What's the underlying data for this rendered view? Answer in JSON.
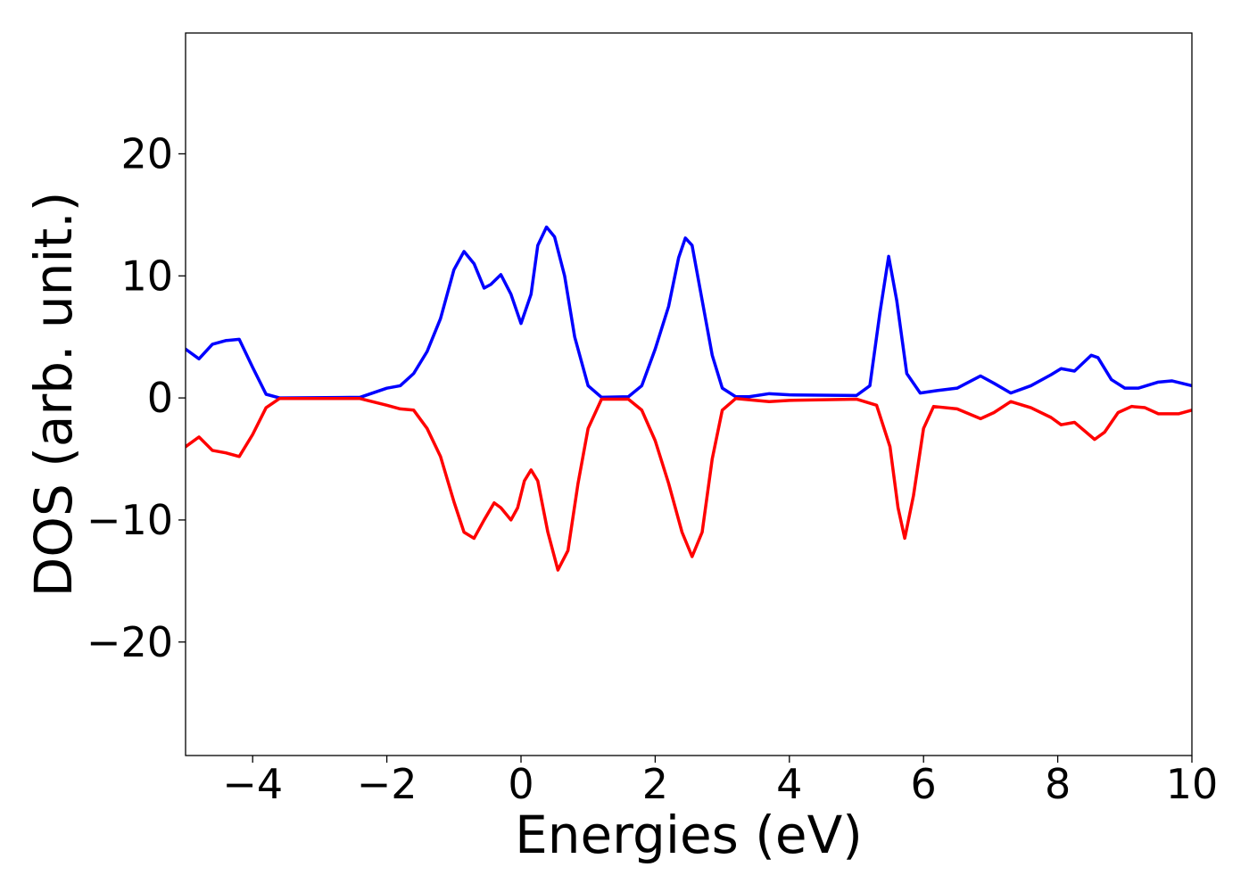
{
  "chart_data": {
    "type": "line",
    "xlabel": "Energies (eV)",
    "ylabel": "DOS (arb. unit.)",
    "xlim": [
      -5,
      10
    ],
    "ylim": [
      -29.3,
      29.9
    ],
    "xticks": [
      {
        "value": -4,
        "label": "−4"
      },
      {
        "value": -2,
        "label": "−2"
      },
      0,
      2,
      4,
      6,
      8,
      10
    ],
    "yticks": [
      {
        "value": -20,
        "label": "−20"
      },
      {
        "value": -10,
        "label": "−10"
      },
      0,
      10,
      20
    ],
    "grid": false,
    "series": [
      {
        "color": "#0000ff",
        "x": [
          -5,
          -4.8,
          -4.6,
          -4.4,
          -4.2,
          -4.0,
          -3.8,
          -3.6,
          -2.4,
          -2.0,
          -1.8,
          -1.6,
          -1.4,
          -1.2,
          -1.0,
          -0.85,
          -0.7,
          -0.55,
          -0.45,
          -0.3,
          -0.15,
          0.0,
          0.15,
          0.25,
          0.38,
          0.5,
          0.65,
          0.8,
          1.0,
          1.2,
          1.6,
          1.8,
          2.0,
          2.2,
          2.35,
          2.45,
          2.55,
          2.7,
          2.85,
          3.0,
          3.2,
          3.4,
          3.7,
          4.0,
          5.0,
          5.2,
          5.35,
          5.48,
          5.6,
          5.75,
          5.95,
          6.2,
          6.5,
          6.85,
          7.05,
          7.3,
          7.6,
          7.9,
          8.05,
          8.25,
          8.5,
          8.6,
          8.8,
          9.0,
          9.2,
          9.5,
          9.7,
          10
        ],
        "values": [
          4.0,
          3.2,
          4.4,
          4.7,
          4.8,
          2.5,
          0.3,
          0.0,
          0.05,
          0.8,
          1.0,
          2.0,
          3.8,
          6.5,
          10.5,
          12.0,
          11.0,
          9.0,
          9.3,
          10.1,
          8.5,
          6.1,
          8.5,
          12.5,
          14.0,
          13.2,
          10.0,
          5.0,
          1.0,
          0.05,
          0.1,
          1.0,
          4.0,
          7.5,
          11.5,
          13.1,
          12.5,
          8.0,
          3.5,
          0.8,
          0.1,
          0.1,
          0.35,
          0.25,
          0.2,
          1.0,
          7.0,
          11.6,
          8.0,
          2.0,
          0.4,
          0.6,
          0.8,
          1.8,
          1.2,
          0.4,
          1.0,
          1.9,
          2.4,
          2.2,
          3.5,
          3.3,
          1.5,
          0.8,
          0.8,
          1.3,
          1.4,
          1.0
        ]
      },
      {
        "color": "#ff0000",
        "x": [
          -5,
          -4.8,
          -4.6,
          -4.4,
          -4.2,
          -4.0,
          -3.8,
          -3.6,
          -2.4,
          -2.0,
          -1.8,
          -1.6,
          -1.4,
          -1.2,
          -1.0,
          -0.85,
          -0.7,
          -0.55,
          -0.4,
          -0.3,
          -0.15,
          -0.05,
          0.05,
          0.15,
          0.25,
          0.4,
          0.55,
          0.7,
          0.85,
          1.0,
          1.2,
          1.6,
          1.8,
          2.0,
          2.2,
          2.4,
          2.55,
          2.7,
          2.85,
          3.0,
          3.2,
          3.5,
          3.7,
          4.0,
          5.0,
          5.3,
          5.5,
          5.62,
          5.72,
          5.85,
          6.0,
          6.15,
          6.5,
          6.85,
          7.05,
          7.3,
          7.6,
          7.9,
          8.05,
          8.25,
          8.55,
          8.7,
          8.9,
          9.1,
          9.3,
          9.5,
          9.8,
          10
        ],
        "values": [
          -4.0,
          -3.2,
          -4.3,
          -4.5,
          -4.8,
          -3.0,
          -0.8,
          -0.05,
          -0.05,
          -0.6,
          -0.9,
          -1.0,
          -2.5,
          -4.8,
          -8.5,
          -11.0,
          -11.5,
          -10.0,
          -8.6,
          -9.0,
          -10.0,
          -9.0,
          -6.8,
          -5.9,
          -6.8,
          -11.0,
          -14.1,
          -12.5,
          -7.0,
          -2.5,
          -0.1,
          -0.1,
          -1.0,
          -3.5,
          -7.0,
          -11.0,
          -13.0,
          -11.0,
          -5.0,
          -1.0,
          -0.05,
          -0.2,
          -0.3,
          -0.2,
          -0.1,
          -0.6,
          -4.0,
          -9.0,
          -11.5,
          -8.0,
          -2.5,
          -0.7,
          -0.9,
          -1.7,
          -1.2,
          -0.3,
          -0.8,
          -1.6,
          -2.2,
          -2.0,
          -3.4,
          -2.8,
          -1.2,
          -0.7,
          -0.8,
          -1.3,
          -1.3,
          -1.0
        ]
      }
    ]
  }
}
